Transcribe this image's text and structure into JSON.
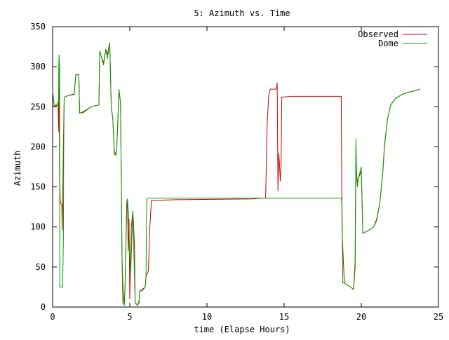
{
  "chart_data": {
    "type": "line",
    "title": "5: Azimuth vs. Time",
    "xlabel": "time (Elapse Hours)",
    "ylabel": "Azimuth",
    "xlim": [
      0,
      25
    ],
    "ylim": [
      0,
      350
    ],
    "xticks": [
      0,
      5,
      10,
      15,
      20,
      25
    ],
    "yticks": [
      0,
      50,
      100,
      150,
      200,
      250,
      300,
      350
    ],
    "grid": false,
    "legend_position": "top-right",
    "series": [
      {
        "name": "Observed",
        "color": "#cc0000",
        "points": [
          [
            0,
            272
          ],
          [
            0.1,
            250
          ],
          [
            0.3,
            252
          ],
          [
            0.35,
            255
          ],
          [
            0.4,
            218
          ],
          [
            0.42,
            300
          ],
          [
            0.45,
            162
          ],
          [
            0.5,
            130
          ],
          [
            0.6,
            128
          ],
          [
            0.62,
            96
          ],
          [
            0.65,
            128
          ],
          [
            0.7,
            205
          ],
          [
            0.75,
            262
          ],
          [
            1.0,
            264
          ],
          [
            1.4,
            266
          ],
          [
            1.5,
            290
          ],
          [
            1.7,
            290
          ],
          [
            1.75,
            242
          ],
          [
            2.0,
            243
          ],
          [
            2.5,
            250
          ],
          [
            2.9,
            252
          ],
          [
            3.0,
            252
          ],
          [
            3.05,
            318
          ],
          [
            3.3,
            305
          ],
          [
            3.45,
            322
          ],
          [
            3.55,
            315
          ],
          [
            3.7,
            330
          ],
          [
            3.8,
            250
          ],
          [
            3.9,
            235
          ],
          [
            4.0,
            195
          ],
          [
            4.1,
            190
          ],
          [
            4.15,
            195
          ],
          [
            4.3,
            270
          ],
          [
            4.4,
            255
          ],
          [
            4.5,
            60
          ],
          [
            4.55,
            30
          ],
          [
            4.6,
            8
          ],
          [
            4.65,
            5
          ],
          [
            4.7,
            30
          ],
          [
            4.75,
            80
          ],
          [
            4.8,
            130
          ],
          [
            4.85,
            135
          ],
          [
            4.9,
            70
          ],
          [
            4.95,
            110
          ],
          [
            5.0,
            10
          ],
          [
            5.1,
            100
          ],
          [
            5.2,
            120
          ],
          [
            5.3,
            80
          ],
          [
            5.35,
            5
          ],
          [
            5.5,
            3
          ],
          [
            5.6,
            5
          ],
          [
            5.65,
            20
          ],
          [
            5.8,
            22
          ],
          [
            6.0,
            25
          ],
          [
            6.05,
            38
          ],
          [
            6.2,
            45
          ],
          [
            6.3,
            100
          ],
          [
            6.4,
            133
          ],
          [
            8.0,
            134
          ],
          [
            13.0,
            135
          ],
          [
            13.5,
            136
          ],
          [
            13.8,
            136
          ],
          [
            13.9,
            228
          ],
          [
            14.0,
            264
          ],
          [
            14.1,
            272
          ],
          [
            14.5,
            272
          ],
          [
            14.55,
            280
          ],
          [
            14.6,
            145
          ],
          [
            14.65,
            192
          ],
          [
            14.7,
            178
          ],
          [
            14.75,
            157
          ],
          [
            14.8,
            178
          ],
          [
            14.85,
            262
          ],
          [
            15.5,
            263
          ],
          [
            17.5,
            263
          ],
          [
            18.7,
            263
          ],
          [
            18.75,
            100
          ],
          [
            18.8,
            75
          ],
          [
            18.9,
            30
          ],
          [
            19.3,
            25
          ],
          [
            19.5,
            22
          ],
          [
            19.6,
            50
          ],
          [
            19.65,
            180
          ],
          [
            19.7,
            165
          ],
          [
            19.75,
            155
          ],
          [
            19.8,
            160
          ],
          [
            20.0,
            170
          ],
          [
            20.1,
            92
          ],
          [
            20.5,
            96
          ],
          [
            20.8,
            100
          ],
          [
            21.0,
            110
          ],
          [
            21.2,
            130
          ],
          [
            21.4,
            170
          ],
          [
            21.5,
            200
          ],
          [
            21.7,
            235
          ],
          [
            21.9,
            252
          ],
          [
            22.2,
            260
          ],
          [
            22.6,
            265
          ],
          [
            23.0,
            268
          ],
          [
            23.5,
            270
          ],
          [
            23.8,
            272
          ]
        ]
      },
      {
        "name": "Dome",
        "color": "#00a000",
        "points": [
          [
            0,
            270
          ],
          [
            0.1,
            252
          ],
          [
            0.3,
            252
          ],
          [
            0.35,
            256
          ],
          [
            0.38,
            250
          ],
          [
            0.4,
            300
          ],
          [
            0.42,
            315
          ],
          [
            0.45,
            300
          ],
          [
            0.47,
            25
          ],
          [
            0.65,
            25
          ],
          [
            0.7,
            88
          ],
          [
            0.72,
            200
          ],
          [
            0.75,
            262
          ],
          [
            1.0,
            264
          ],
          [
            1.4,
            265
          ],
          [
            1.5,
            290
          ],
          [
            1.7,
            290
          ],
          [
            1.75,
            242
          ],
          [
            2.0,
            244
          ],
          [
            2.5,
            250
          ],
          [
            2.9,
            252
          ],
          [
            3.0,
            252
          ],
          [
            3.05,
            320
          ],
          [
            3.3,
            302
          ],
          [
            3.45,
            322
          ],
          [
            3.55,
            310
          ],
          [
            3.7,
            330
          ],
          [
            3.8,
            250
          ],
          [
            3.9,
            235
          ],
          [
            4.0,
            190
          ],
          [
            4.1,
            190
          ],
          [
            4.15,
            195
          ],
          [
            4.3,
            272
          ],
          [
            4.4,
            255
          ],
          [
            4.5,
            55
          ],
          [
            4.55,
            5
          ],
          [
            4.6,
            5
          ],
          [
            4.65,
            2
          ],
          [
            4.7,
            30
          ],
          [
            4.8,
            120
          ],
          [
            4.85,
            135
          ],
          [
            4.9,
            120
          ],
          [
            5.0,
            60
          ],
          [
            5.05,
            40
          ],
          [
            5.2,
            120
          ],
          [
            5.3,
            40
          ],
          [
            5.35,
            5
          ],
          [
            5.5,
            2
          ],
          [
            5.6,
            8
          ],
          [
            5.65,
            20
          ],
          [
            5.8,
            20
          ],
          [
            6.0,
            25
          ],
          [
            6.05,
            38
          ],
          [
            6.1,
            135
          ],
          [
            6.15,
            136
          ],
          [
            8.0,
            136
          ],
          [
            13.0,
            136
          ],
          [
            13.5,
            136
          ],
          [
            14.0,
            136
          ],
          [
            15.0,
            136
          ],
          [
            17.0,
            136
          ],
          [
            18.5,
            136
          ],
          [
            18.7,
            136
          ],
          [
            18.75,
            130
          ],
          [
            18.8,
            30
          ],
          [
            18.9,
            30
          ],
          [
            19.3,
            25
          ],
          [
            19.5,
            22
          ],
          [
            19.6,
            60
          ],
          [
            19.65,
            210
          ],
          [
            19.7,
            160
          ],
          [
            19.75,
            150
          ],
          [
            19.8,
            160
          ],
          [
            20.0,
            175
          ],
          [
            20.1,
            92
          ],
          [
            20.5,
            96
          ],
          [
            20.8,
            100
          ],
          [
            21.0,
            108
          ],
          [
            21.2,
            130
          ],
          [
            21.4,
            170
          ],
          [
            21.5,
            202
          ],
          [
            21.7,
            235
          ],
          [
            21.9,
            252
          ],
          [
            22.2,
            260
          ],
          [
            22.6,
            265
          ],
          [
            23.0,
            268
          ],
          [
            23.5,
            270
          ],
          [
            23.8,
            272
          ]
        ]
      }
    ]
  }
}
